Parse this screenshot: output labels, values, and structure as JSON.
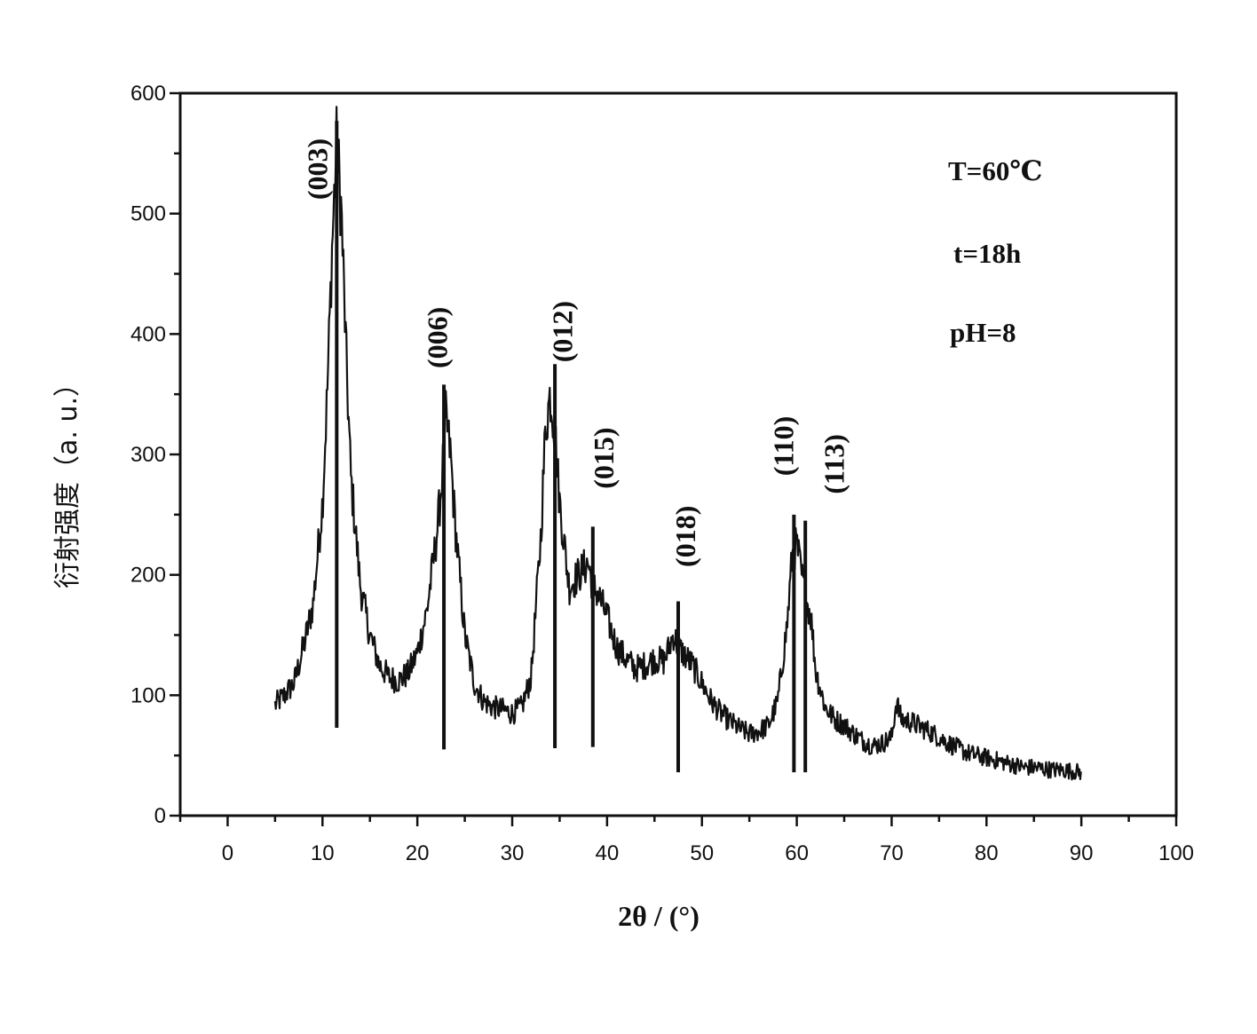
{
  "chart_data": {
    "type": "line",
    "xlabel": "2θ / (°)",
    "ylabel": "衍射强度（a. u.）",
    "xlim": [
      -5,
      100
    ],
    "ylim": [
      0,
      600
    ],
    "xticks": [
      0,
      10,
      20,
      30,
      40,
      50,
      60,
      70,
      80,
      90,
      100
    ],
    "yticks": [
      0,
      100,
      200,
      300,
      400,
      500,
      600
    ],
    "grid": false,
    "legend": "none",
    "annotations": [
      "T=60℃",
      "t=18h",
      "pH=8"
    ],
    "series": [
      {
        "x": [
          5.0,
          6.0,
          7.0,
          8.0,
          9.0,
          10.0,
          10.5,
          11.0,
          11.5,
          12.0,
          12.5,
          13.0,
          14.0,
          15.0,
          16.0,
          17.0,
          18.0,
          19.0,
          20.0,
          21.0,
          22.0,
          22.5,
          23.0,
          23.5,
          24.0,
          25.0,
          26.0,
          27.0,
          28.0,
          29.0,
          30.0,
          31.0,
          32.0,
          33.0,
          33.5,
          34.0,
          34.5,
          35.0,
          36.0,
          37.0,
          38.0,
          38.5,
          39.0,
          40.0,
          41.0,
          42.0,
          43.0,
          44.0,
          45.0,
          46.0,
          47.0,
          47.5,
          48.0,
          49.0,
          50.0,
          51.0,
          52.0,
          53.0,
          54.0,
          55.0,
          56.0,
          57.0,
          58.0,
          59.0,
          59.5,
          60.0,
          60.5,
          61.0,
          61.5,
          62.0,
          63.0,
          64.0,
          65.0,
          66.0,
          67.0,
          68.0,
          69.0,
          70.0,
          70.5,
          71.0,
          72.0,
          73.0,
          74.0,
          75.0,
          76.0,
          77.0,
          78.0,
          79.0,
          80.0,
          81.0,
          82.0,
          83.0,
          84.0,
          85.0,
          86.0,
          87.0,
          88.0,
          89.0,
          90.0
        ],
        "values": [
          92,
          100,
          110,
          140,
          175,
          260,
          350,
          470,
          560,
          500,
          380,
          280,
          190,
          150,
          125,
          115,
          112,
          118,
          135,
          170,
          230,
          270,
          330,
          300,
          240,
          150,
          110,
          95,
          90,
          88,
          85,
          90,
          115,
          230,
          320,
          350,
          320,
          260,
          190,
          200,
          210,
          190,
          185,
          165,
          140,
          130,
          122,
          125,
          130,
          128,
          150,
          140,
          135,
          125,
          110,
          95,
          85,
          78,
          72,
          68,
          70,
          75,
          95,
          160,
          215,
          225,
          200,
          180,
          165,
          120,
          90,
          80,
          75,
          68,
          62,
          58,
          60,
          65,
          95,
          80,
          78,
          74,
          70,
          65,
          60,
          56,
          52,
          50,
          48,
          46,
          44,
          42,
          40,
          40,
          39,
          38,
          38,
          37,
          36
        ]
      }
    ],
    "reference_lines": [
      {
        "x": 11.5,
        "top": 577,
        "bottom": 73,
        "label": "(003)"
      },
      {
        "x": 22.8,
        "top": 358,
        "bottom": 55,
        "label": "(006)"
      },
      {
        "x": 34.5,
        "top": 375,
        "bottom": 56,
        "label": "(012)"
      },
      {
        "x": 38.5,
        "top": 240,
        "bottom": 57,
        "label": "(015)"
      },
      {
        "x": 47.5,
        "top": 178,
        "bottom": 36,
        "label": "(018)"
      },
      {
        "x": 59.7,
        "top": 250,
        "bottom": 36,
        "label": "(110)"
      },
      {
        "x": 60.9,
        "top": 245,
        "bottom": 36,
        "label": "(113)"
      }
    ]
  }
}
